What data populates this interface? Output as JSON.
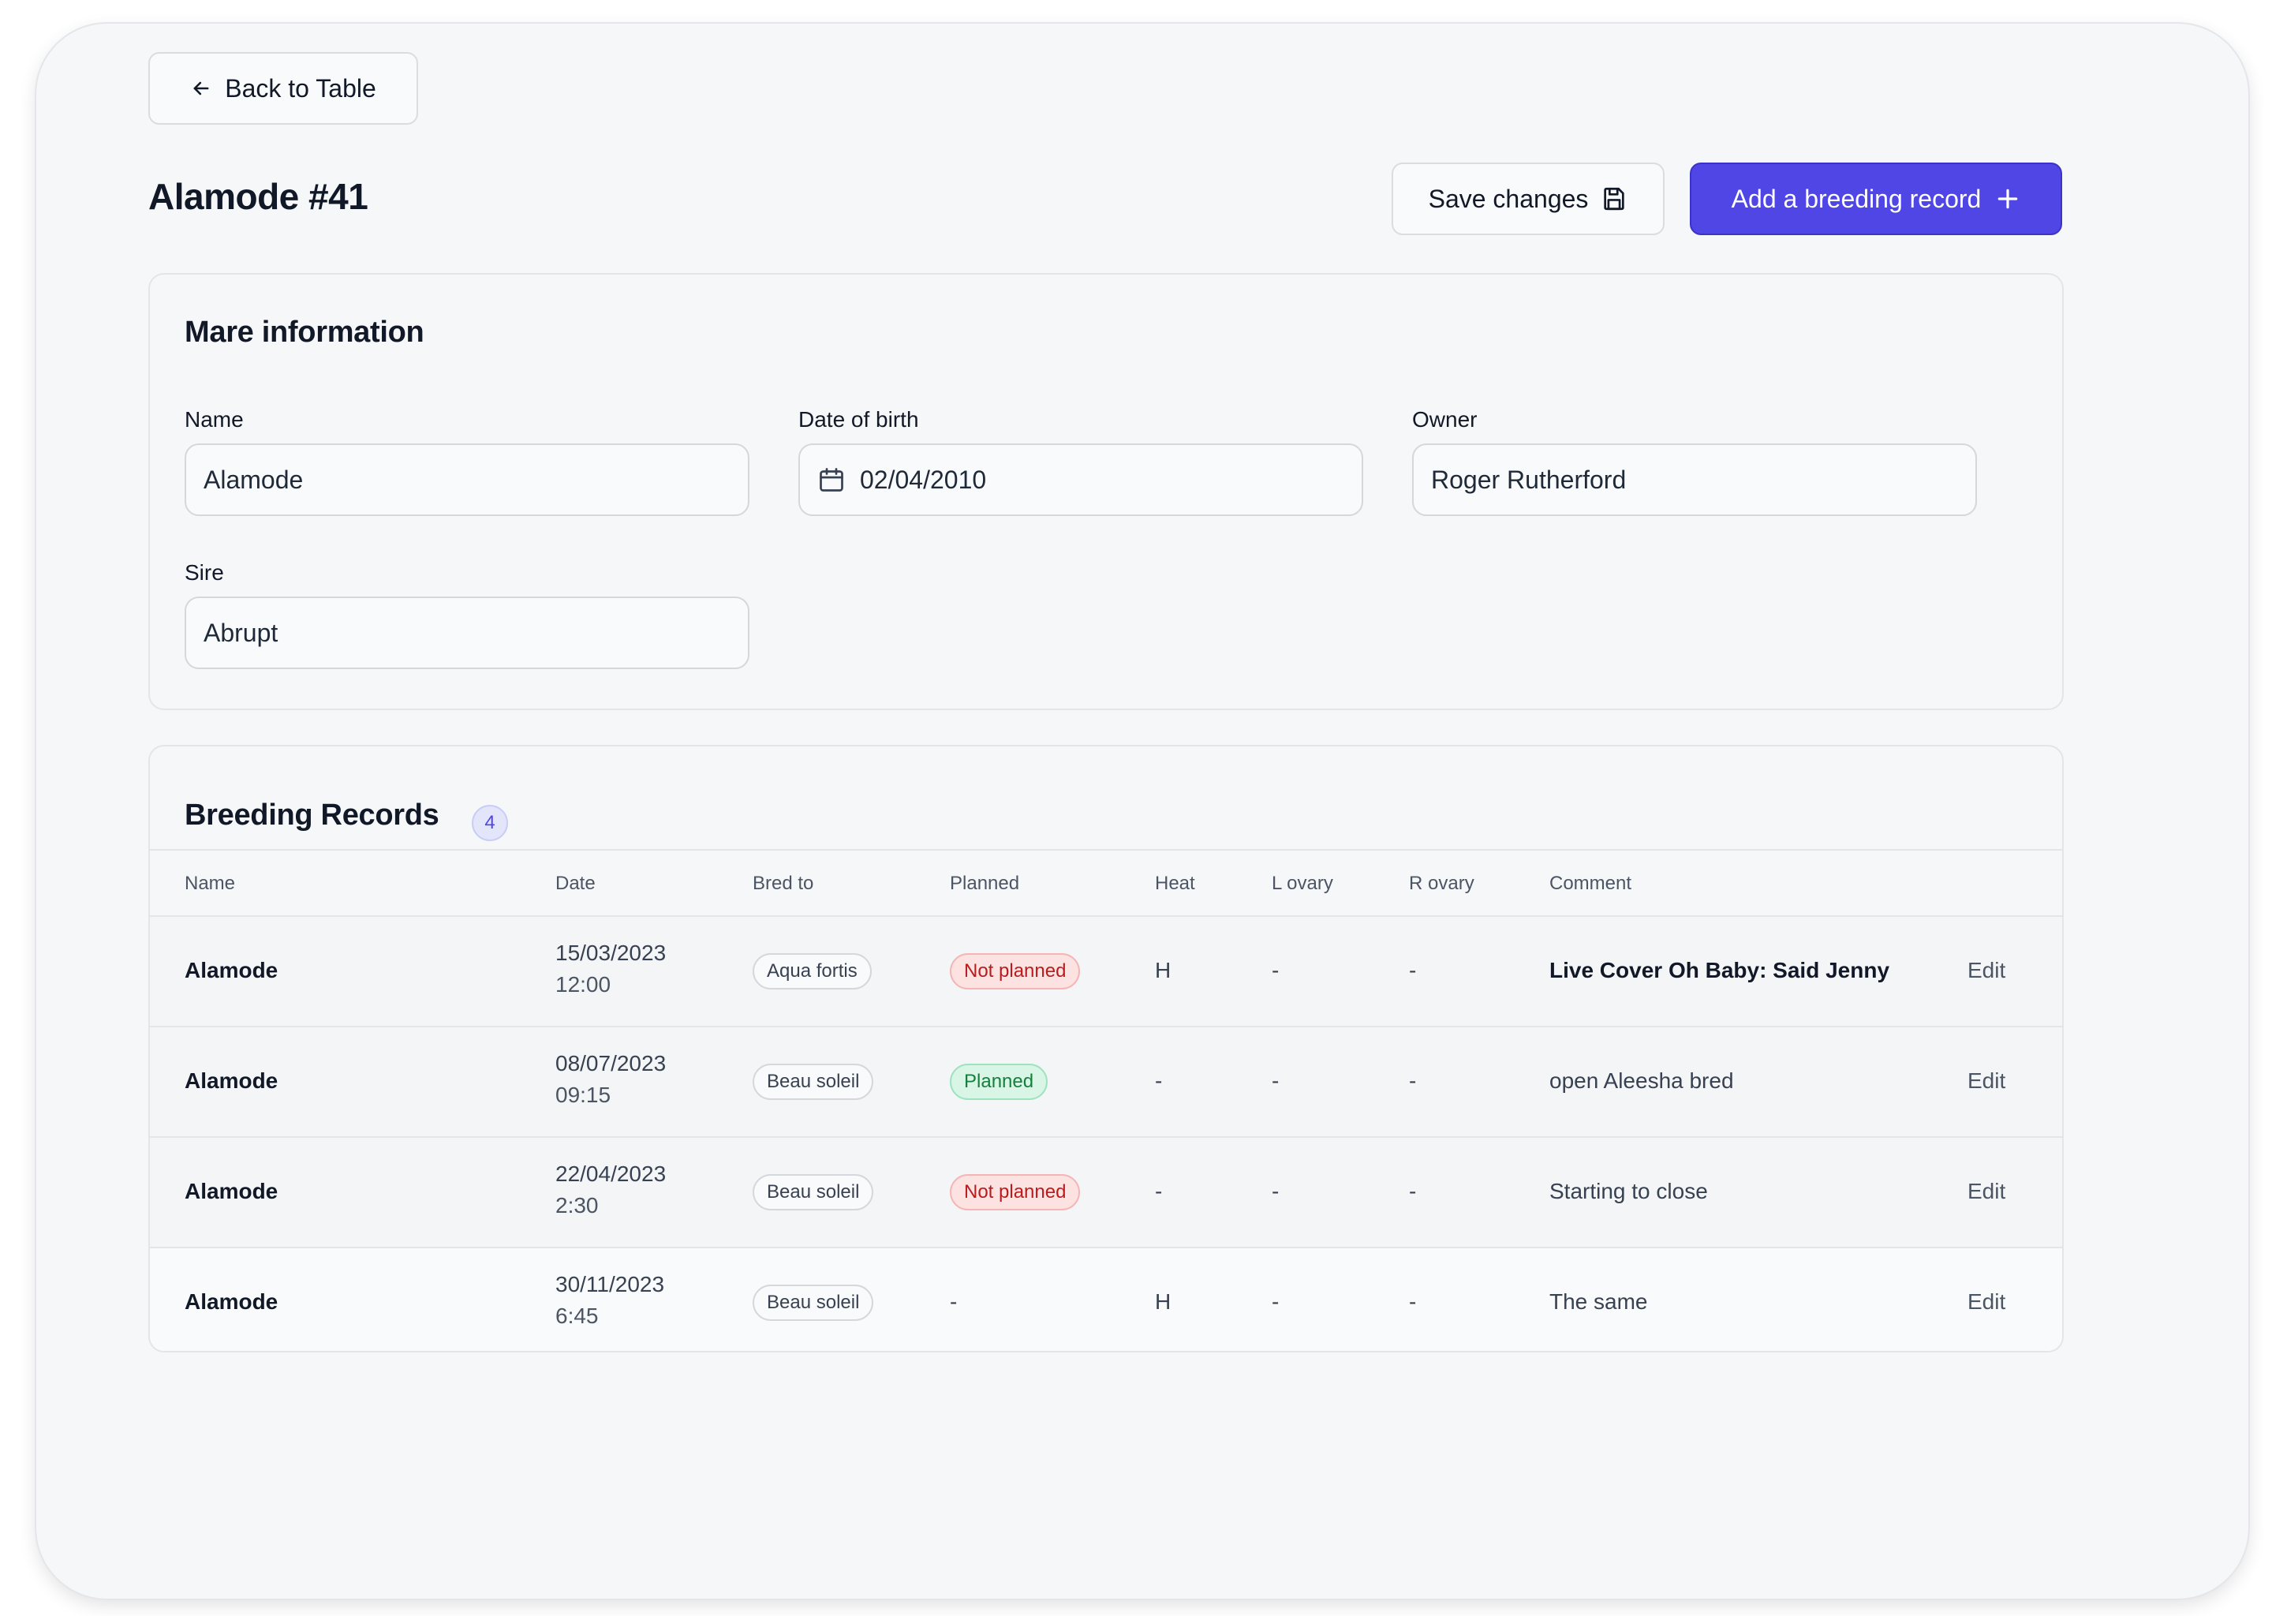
{
  "nav": {
    "back_label": "Back to Table"
  },
  "header": {
    "title": "Alamode #41",
    "save_label": "Save changes",
    "add_label": "Add a breeding record"
  },
  "mare": {
    "section_title": "Mare information",
    "name_label": "Name",
    "name_value": "Alamode",
    "dob_label": "Date of birth",
    "dob_value": "02/04/2010",
    "owner_label": "Owner",
    "owner_value": "Roger Rutherford",
    "sire_label": "Sire",
    "sire_value": "Abrupt"
  },
  "records": {
    "section_title": "Breeding Records",
    "count": "4",
    "columns": [
      "Name",
      "Date",
      "Bred to",
      "Planned",
      "Heat",
      "L ovary",
      "R ovary",
      "Comment"
    ],
    "rows": [
      {
        "name": "Alamode",
        "date": "15/03/2023",
        "time": "12:00",
        "bred_to": "Aqua fortis",
        "planned": "Not planned",
        "heat": "H",
        "l_ovary": "-",
        "r_ovary": "-",
        "comment": "Live Cover Oh Baby: Said Jenny",
        "edit": "Edit"
      },
      {
        "name": "Alamode",
        "date": "08/07/2023",
        "time": "09:15",
        "bred_to": "Beau soleil",
        "planned": "Planned",
        "heat": "-",
        "l_ovary": "-",
        "r_ovary": "-",
        "comment": "open Aleesha bred",
        "edit": "Edit"
      },
      {
        "name": "Alamode",
        "date": "22/04/2023",
        "time": "2:30",
        "bred_to": "Beau soleil",
        "planned": "Not planned",
        "heat": "-",
        "l_ovary": "-",
        "r_ovary": "-",
        "comment": "Starting to close",
        "edit": "Edit"
      },
      {
        "name": "Alamode",
        "date": "30/11/2023",
        "time": "6:45",
        "bred_to": "Beau soleil",
        "planned": "-",
        "heat": "H",
        "l_ovary": "-",
        "r_ovary": "-",
        "comment": "The same",
        "edit": "Edit"
      }
    ]
  },
  "icons": {
    "back": "arrow-left-icon",
    "save": "floppy-disk-icon",
    "add": "plus-icon",
    "calendar": "calendar-icon"
  },
  "colors": {
    "accent": "#4f46e5",
    "not_planned": "#b91c1c",
    "planned": "#15803d"
  }
}
